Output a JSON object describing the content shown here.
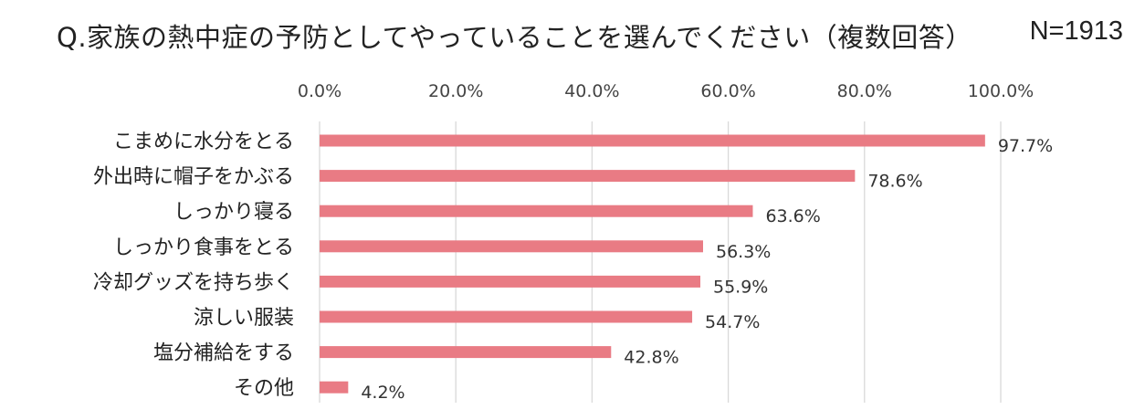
{
  "title": "Q.家族の熱中症の予防としてやっていることを選んでください（複数回答）",
  "sample_size": "N=1913",
  "colors": {
    "bar": "#e97b84",
    "grid": "#d9d9d9"
  },
  "chart_data": {
    "type": "bar",
    "orientation": "horizontal",
    "title": "Q.家族の熱中症の予防としてやっていることを選んでください（複数回答）",
    "categories": [
      "こまめに水分をとる",
      "外出時に帽子をかぶる",
      "しっかり寝る",
      "しっかり食事をとる",
      "冷却グッズを持ち歩く",
      "涼しい服装",
      "塩分補給をする",
      "その他"
    ],
    "values": [
      97.7,
      78.6,
      63.6,
      56.3,
      55.9,
      54.7,
      42.8,
      4.2
    ],
    "value_labels": [
      "97.7%",
      "78.6%",
      "63.6%",
      "56.3%",
      "55.9%",
      "54.7%",
      "42.8%",
      "4.2%"
    ],
    "xlim": [
      0,
      100
    ],
    "xticks": [
      "0.0%",
      "20.0%",
      "40.0%",
      "60.0%",
      "80.0%",
      "100.0%"
    ],
    "axis_position": "top",
    "grid": true,
    "legend": "none"
  }
}
